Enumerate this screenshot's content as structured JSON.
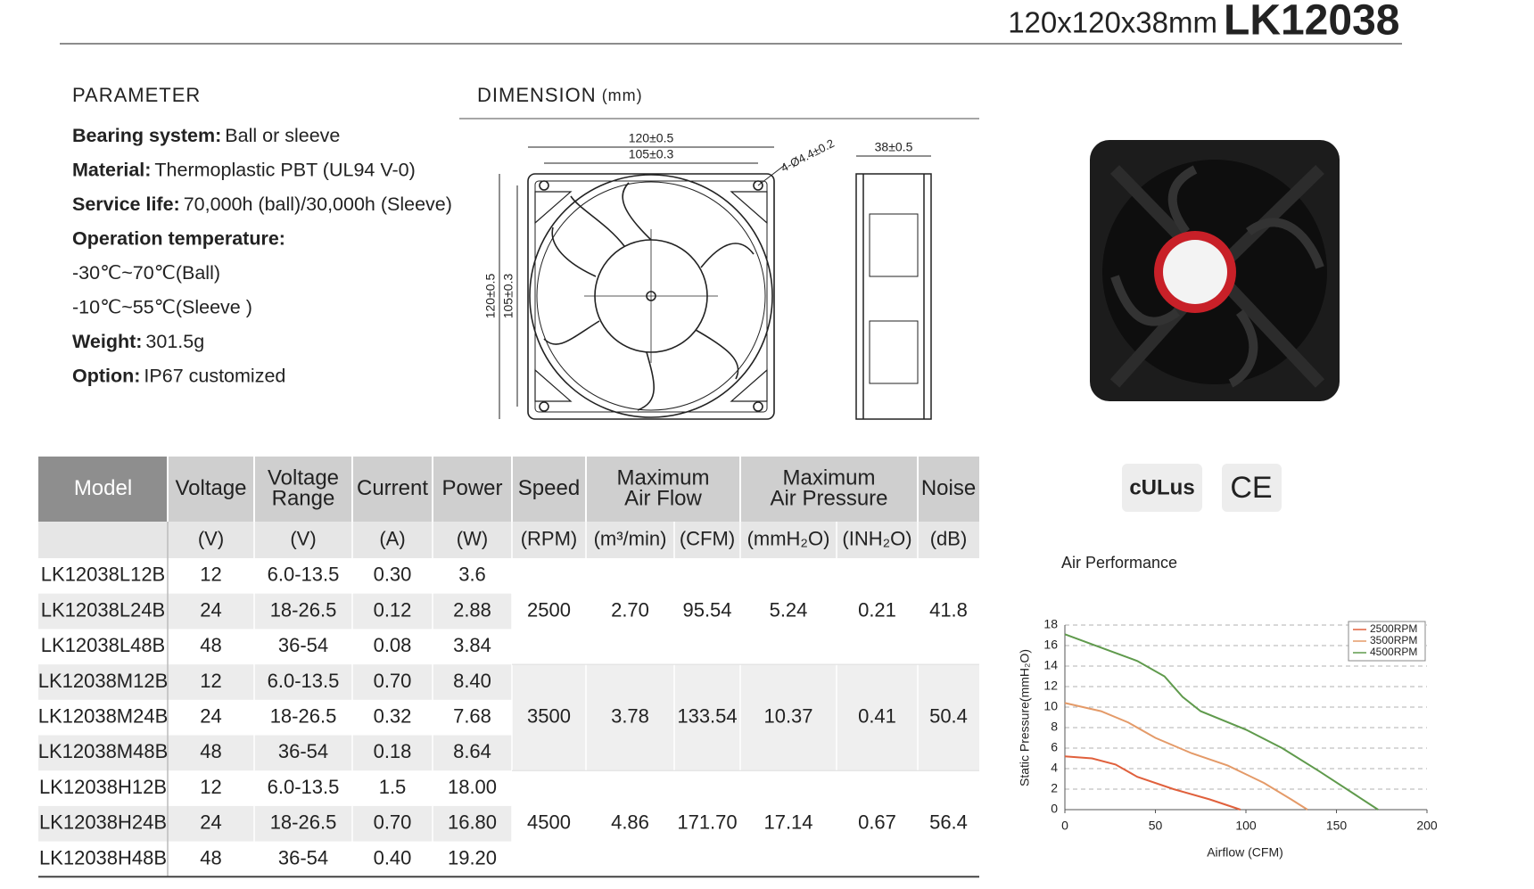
{
  "header": {
    "size": "120x120x38mm",
    "model": "LK12038"
  },
  "parameter": {
    "title": "PARAMETER",
    "items": [
      {
        "label": "Bearing system:",
        "value": "Ball or sleeve"
      },
      {
        "label": "Material:",
        "value": "Thermoplastic PBT (UL94 V-0)"
      },
      {
        "label": "Service life:",
        "value": "70,000h (ball)/30,000h (Sleeve)"
      },
      {
        "label": "Operation temperature:"
      },
      {
        "value": "-30℃~70℃(Ball)"
      },
      {
        "value": "-10℃~55℃(Sleeve )"
      },
      {
        "label": "Weight:",
        "value": "301.5g"
      },
      {
        "label": "Option:",
        "value": "IP67 customized"
      }
    ]
  },
  "dimension": {
    "title": "DIMENSION",
    "unit": "(mm)",
    "width_outer": "120±0.5",
    "width_inner": "105±0.3",
    "hole": "4-Ø4.4±0.2",
    "depth": "38±0.5",
    "height_outer": "120±0.5",
    "height_inner": "105±0.3"
  },
  "certifications": [
    "cULus",
    "CE"
  ],
  "table": {
    "headers": [
      [
        "Model"
      ],
      [
        "Voltage"
      ],
      [
        "Voltage",
        "Range"
      ],
      [
        "Current"
      ],
      [
        "Power"
      ],
      [
        "Speed"
      ],
      [
        "Maximum",
        "Air Flow"
      ],
      [
        "Maximum",
        "Air Pressure"
      ],
      [
        "Noise"
      ]
    ],
    "units": [
      "(V)",
      "(V)",
      "(A)",
      "(W)",
      "(RPM)",
      "(m³/min)",
      "(CFM)",
      "(mmH₂O)",
      "(INH₂O)",
      "(dB)"
    ],
    "rows": [
      [
        "LK12038L12B",
        "12",
        "6.0-13.5",
        "0.30",
        "3.6"
      ],
      [
        "LK12038L24B",
        "24",
        "18-26.5",
        "0.12",
        "2.88"
      ],
      [
        "LK12038L48B",
        "48",
        "36-54",
        "0.08",
        "3.84"
      ],
      [
        "LK12038M12B",
        "12",
        "6.0-13.5",
        "0.70",
        "8.40"
      ],
      [
        "LK12038M24B",
        "24",
        "18-26.5",
        "0.32",
        "7.68"
      ],
      [
        "LK12038M48B",
        "48",
        "36-54",
        "0.18",
        "8.64"
      ],
      [
        "LK12038H12B",
        "12",
        "6.0-13.5",
        "1.5",
        "18.00"
      ],
      [
        "LK12038H24B",
        "24",
        "18-26.5",
        "0.70",
        "16.80"
      ],
      [
        "LK12038H48B",
        "48",
        "36-54",
        "0.40",
        "19.20"
      ]
    ],
    "groups": [
      [
        "2500",
        "2.70",
        "95.54",
        "5.24",
        "0.21",
        "41.8"
      ],
      [
        "3500",
        "3.78",
        "133.54",
        "10.37",
        "0.41",
        "50.4"
      ],
      [
        "4500",
        "4.86",
        "171.70",
        "17.14",
        "0.67",
        "56.4"
      ]
    ]
  },
  "chart": {
    "type": "line",
    "title": "Air Performance",
    "x_label": "Airflow (CFM)",
    "y_label": "Static Pressure(mmH₂O)",
    "xlim": [
      0,
      200
    ],
    "xticks": [
      0,
      50,
      100,
      150,
      200
    ],
    "ylim": [
      0,
      18
    ],
    "yticks": [
      0,
      2,
      4,
      6,
      8,
      10,
      12,
      14,
      16,
      18
    ],
    "grid": true,
    "legend": "upper right",
    "series": [
      {
        "name": "2500RPM",
        "color": "#e0603c",
        "x": [
          0,
          15,
          28,
          40,
          60,
          80,
          97
        ],
        "values": [
          5.2,
          5.0,
          4.4,
          3.2,
          2.0,
          1.0,
          0
        ]
      },
      {
        "name": "3500RPM",
        "color": "#e49a68",
        "x": [
          0,
          20,
          35,
          50,
          70,
          90,
          110,
          125,
          134
        ],
        "values": [
          10.4,
          9.6,
          8.5,
          7.0,
          5.5,
          4.3,
          2.6,
          1.0,
          0
        ]
      },
      {
        "name": "4500RPM",
        "color": "#5f9a4c",
        "x": [
          0,
          20,
          40,
          55,
          65,
          75,
          100,
          120,
          140,
          160,
          173
        ],
        "values": [
          17.1,
          15.8,
          14.5,
          13.0,
          11.0,
          9.6,
          7.8,
          6.0,
          3.8,
          1.5,
          0
        ]
      }
    ]
  }
}
